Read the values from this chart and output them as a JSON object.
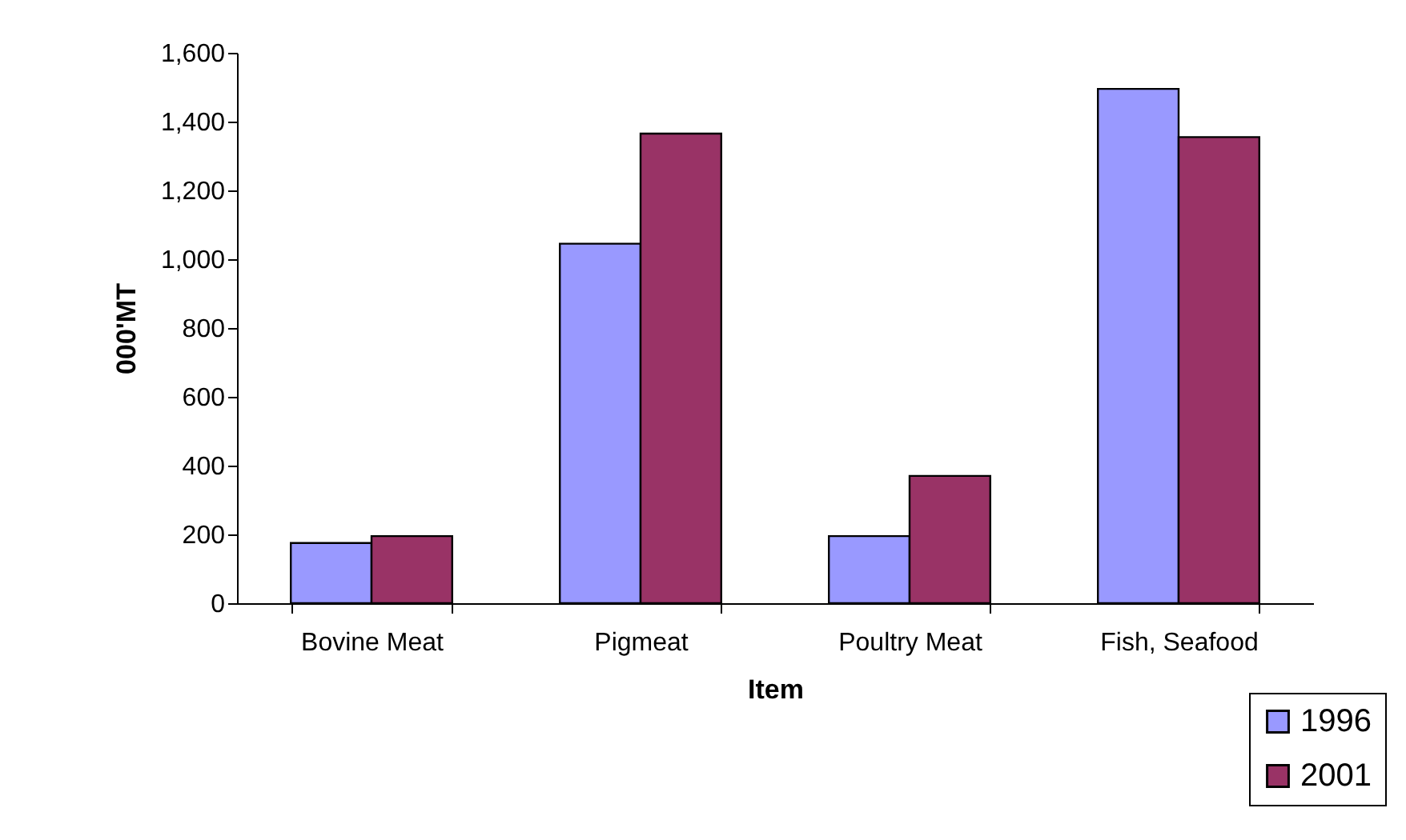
{
  "chart_data": {
    "type": "bar",
    "xlabel": "Item",
    "ylabel": "000'MT",
    "categories": [
      "Bovine Meat",
      "Pigmeat",
      "Poultry Meat",
      "Fish, Seafood"
    ],
    "series": [
      {
        "name": "1996",
        "color": "#9999ff",
        "values": [
          175,
          1045,
          195,
          1495
        ]
      },
      {
        "name": "2001",
        "color": "#993366",
        "values": [
          195,
          1365,
          370,
          1355
        ]
      }
    ],
    "ylim": [
      0,
      1600
    ],
    "yticks": [
      0,
      200,
      400,
      600,
      800,
      {
        "value": 1000,
        "label": "1,000"
      },
      {
        "value": 1200,
        "label": "1,200"
      },
      {
        "value": 1400,
        "label": "1,400"
      },
      {
        "value": 1600,
        "label": "1,600"
      }
    ],
    "grid": false,
    "legend": "bottom right"
  }
}
